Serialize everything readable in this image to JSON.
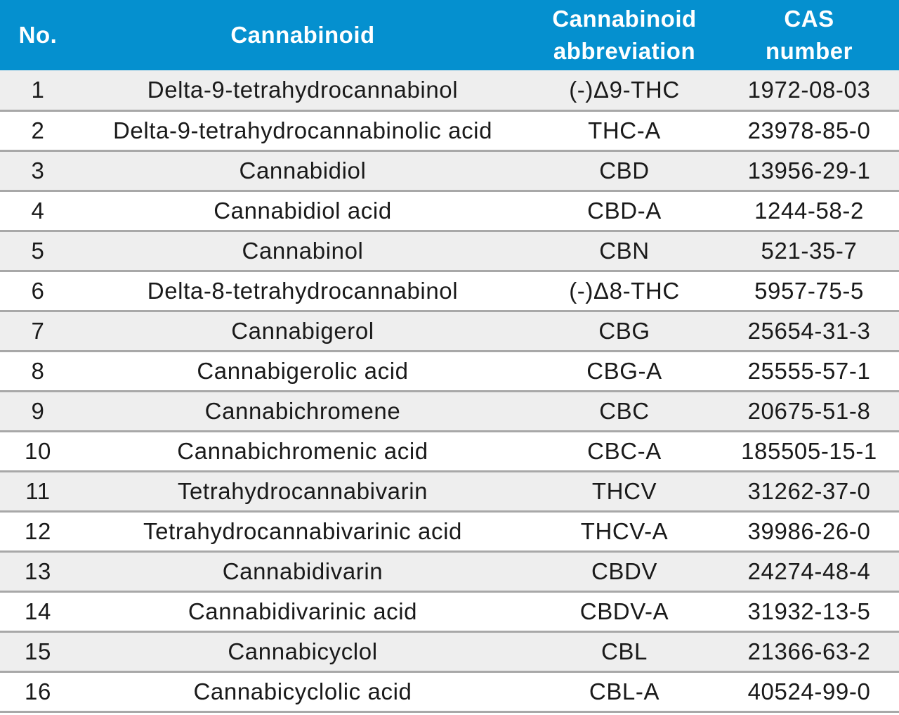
{
  "table": {
    "headers": {
      "no": "No.",
      "cannabinoid": "Cannabinoid",
      "abbreviation_line1": "Cannabinoid",
      "abbreviation_line2": "abbreviation",
      "cas_line1": "CAS",
      "cas_line2": "number"
    },
    "rows": [
      {
        "no": "1",
        "name": "Delta-9-tetrahydrocannabinol",
        "abbr": "(-)Δ9-THC",
        "cas": "1972-08-03"
      },
      {
        "no": "2",
        "name": "Delta-9-tetrahydrocannabinolic acid",
        "abbr": "THC-A",
        "cas": "23978-85-0"
      },
      {
        "no": "3",
        "name": "Cannabidiol",
        "abbr": "CBD",
        "cas": "13956-29-1"
      },
      {
        "no": "4",
        "name": "Cannabidiol acid",
        "abbr": "CBD-A",
        "cas": "1244-58-2"
      },
      {
        "no": "5",
        "name": "Cannabinol",
        "abbr": "CBN",
        "cas": "521-35-7"
      },
      {
        "no": "6",
        "name": "Delta-8-tetrahydrocannabinol",
        "abbr": "(-)Δ8-THC",
        "cas": "5957-75-5"
      },
      {
        "no": "7",
        "name": "Cannabigerol",
        "abbr": "CBG",
        "cas": "25654-31-3"
      },
      {
        "no": "8",
        "name": "Cannabigerolic acid",
        "abbr": "CBG-A",
        "cas": "25555-57-1"
      },
      {
        "no": "9",
        "name": "Cannabichromene",
        "abbr": "CBC",
        "cas": "20675-51-8"
      },
      {
        "no": "10",
        "name": "Cannabichromenic acid",
        "abbr": "CBC-A",
        "cas": "185505-15-1"
      },
      {
        "no": "11",
        "name": "Tetrahydrocannabivarin",
        "abbr": "THCV",
        "cas": "31262-37-0"
      },
      {
        "no": "12",
        "name": "Tetrahydrocannabivarinic acid",
        "abbr": "THCV-A",
        "cas": "39986-26-0"
      },
      {
        "no": "13",
        "name": "Cannabidivarin",
        "abbr": "CBDV",
        "cas": "24274-48-4"
      },
      {
        "no": "14",
        "name": "Cannabidivarinic acid",
        "abbr": "CBDV-A",
        "cas": "31932-13-5"
      },
      {
        "no": "15",
        "name": "Cannabicyclol",
        "abbr": "CBL",
        "cas": "21366-63-2"
      },
      {
        "no": "16",
        "name": "Cannabicyclolic acid",
        "abbr": "CBL-A",
        "cas": "40524-99-0"
      }
    ]
  },
  "colors": {
    "header_background": "#0590cf",
    "header_text": "#ffffff",
    "row_stripe": "#eeeeee",
    "row_divider": "#a8a8a8",
    "body_text": "#1a1a1a"
  }
}
